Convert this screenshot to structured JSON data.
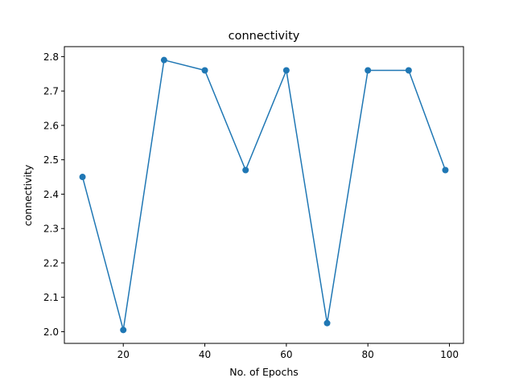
{
  "chart_data": {
    "type": "line",
    "title": "connectivity",
    "xlabel": "No. of Epochs",
    "ylabel": "connectivity",
    "x": [
      10,
      20,
      30,
      40,
      50,
      60,
      70,
      80,
      90,
      99
    ],
    "series": [
      {
        "values": [
          2.45,
          2.005,
          2.79,
          2.76,
          2.47,
          2.76,
          2.025,
          2.76,
          2.76,
          2.47
        ],
        "color": "#1f77b4",
        "marker": "circle"
      }
    ],
    "xlim": [
      5.55,
      103.45
    ],
    "ylim": [
      1.966,
      2.829
    ],
    "xticks": [
      20,
      40,
      60,
      80,
      100
    ],
    "xtick_labels": [
      "20",
      "40",
      "60",
      "80",
      "100"
    ],
    "yticks": [
      2.0,
      2.1,
      2.2,
      2.3,
      2.4,
      2.5,
      2.6,
      2.7,
      2.8
    ],
    "ytick_labels": [
      "2.0",
      "2.1",
      "2.2",
      "2.3",
      "2.4",
      "2.5",
      "2.6",
      "2.7",
      "2.8"
    ],
    "grid": false,
    "legend": "none"
  }
}
